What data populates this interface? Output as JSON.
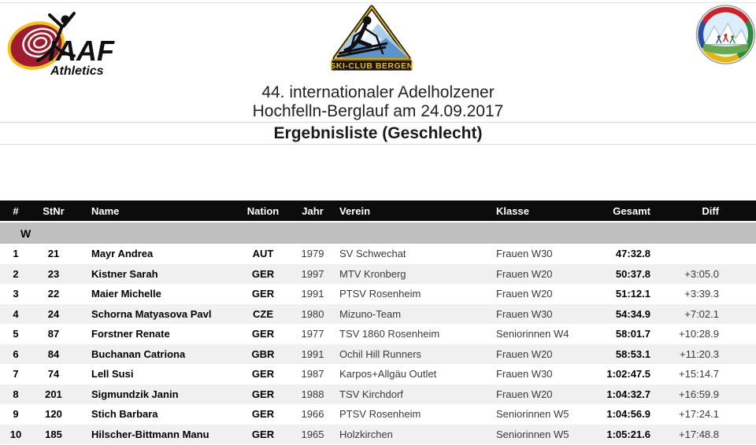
{
  "logos": {
    "iaaf": {
      "label": "IAAF",
      "sublabel": "Athletics"
    },
    "ski_club": {
      "banner": "SKI-CLUB BERGEN"
    },
    "badge": {
      "description": "circular mountain-running badge"
    }
  },
  "title": {
    "line1": "44. internationaler Adelholzener",
    "line2": "Hochfelln-Berglauf am 24.09.2017",
    "subtitle": "Ergebnisliste (Geschlecht)"
  },
  "table": {
    "columns": [
      "#",
      "StNr",
      "Name",
      "Nation",
      "Jahr",
      "Verein",
      "Klasse",
      "Gesamt",
      "Diff"
    ],
    "section_label": "W",
    "rows": [
      {
        "pos": "1",
        "stnr": "21",
        "name": "Mayr Andrea",
        "nation": "AUT",
        "jahr": "1979",
        "verein": "SV Schwechat",
        "klasse": "Frauen W30",
        "gesamt": "47:32.8",
        "diff": ""
      },
      {
        "pos": "2",
        "stnr": "23",
        "name": "Kistner Sarah",
        "nation": "GER",
        "jahr": "1997",
        "verein": "MTV Kronberg",
        "klasse": "Frauen W20",
        "gesamt": "50:37.8",
        "diff": "+3:05.0"
      },
      {
        "pos": "3",
        "stnr": "22",
        "name": "Maier Michelle",
        "nation": "GER",
        "jahr": "1991",
        "verein": "PTSV Rosenheim",
        "klasse": "Frauen W20",
        "gesamt": "51:12.1",
        "diff": "+3:39.3"
      },
      {
        "pos": "4",
        "stnr": "24",
        "name": "Schorna Matyasova Pavl",
        "nation": "CZE",
        "jahr": "1980",
        "verein": "Mizuno-Team",
        "klasse": "Frauen W30",
        "gesamt": "54:34.9",
        "diff": "+7:02.1"
      },
      {
        "pos": "5",
        "stnr": "87",
        "name": "Forstner Renate",
        "nation": "GER",
        "jahr": "1977",
        "verein": "TSV 1860 Rosenheim",
        "klasse": "Seniorinnen W4",
        "gesamt": "58:01.7",
        "diff": "+10:28.9"
      },
      {
        "pos": "6",
        "stnr": "84",
        "name": "Buchanan Catriona",
        "nation": "GBR",
        "jahr": "1991",
        "verein": "Ochil Hill Runners",
        "klasse": "Frauen W20",
        "gesamt": "58:53.1",
        "diff": "+11:20.3"
      },
      {
        "pos": "7",
        "stnr": "74",
        "name": "Lell Susi",
        "nation": "GER",
        "jahr": "1987",
        "verein": "Karpos+Allgäu Outlet",
        "klasse": "Frauen W30",
        "gesamt": "1:02:47.5",
        "diff": "+15:14.7"
      },
      {
        "pos": "8",
        "stnr": "201",
        "name": "Sigmundzik Janin",
        "nation": "GER",
        "jahr": "1988",
        "verein": "TSV Kirchdorf",
        "klasse": "Frauen W20",
        "gesamt": "1:04:32.7",
        "diff": "+16:59.9"
      },
      {
        "pos": "9",
        "stnr": "120",
        "name": "Stich Barbara",
        "nation": "GER",
        "jahr": "1966",
        "verein": "PTSV Rosenheim",
        "klasse": "Seniorinnen W5",
        "gesamt": "1:04:56.9",
        "diff": "+17:24.1"
      },
      {
        "pos": "10",
        "stnr": "185",
        "name": "Hilscher-Bittmann Manu",
        "nation": "GER",
        "jahr": "1965",
        "verein": "Holzkirchen",
        "klasse": "Seniorinnen W5",
        "gesamt": "1:05:21.6",
        "diff": "+17:48.8"
      }
    ]
  },
  "colors": {
    "header_bg": "#0c0c0c",
    "header_text": "#ffffff",
    "section_bg": "#bfbfbf",
    "row_alt_bg": "#f0f0f0",
    "iaaf_red": "#9e1b30",
    "gold": "#e6b400"
  }
}
